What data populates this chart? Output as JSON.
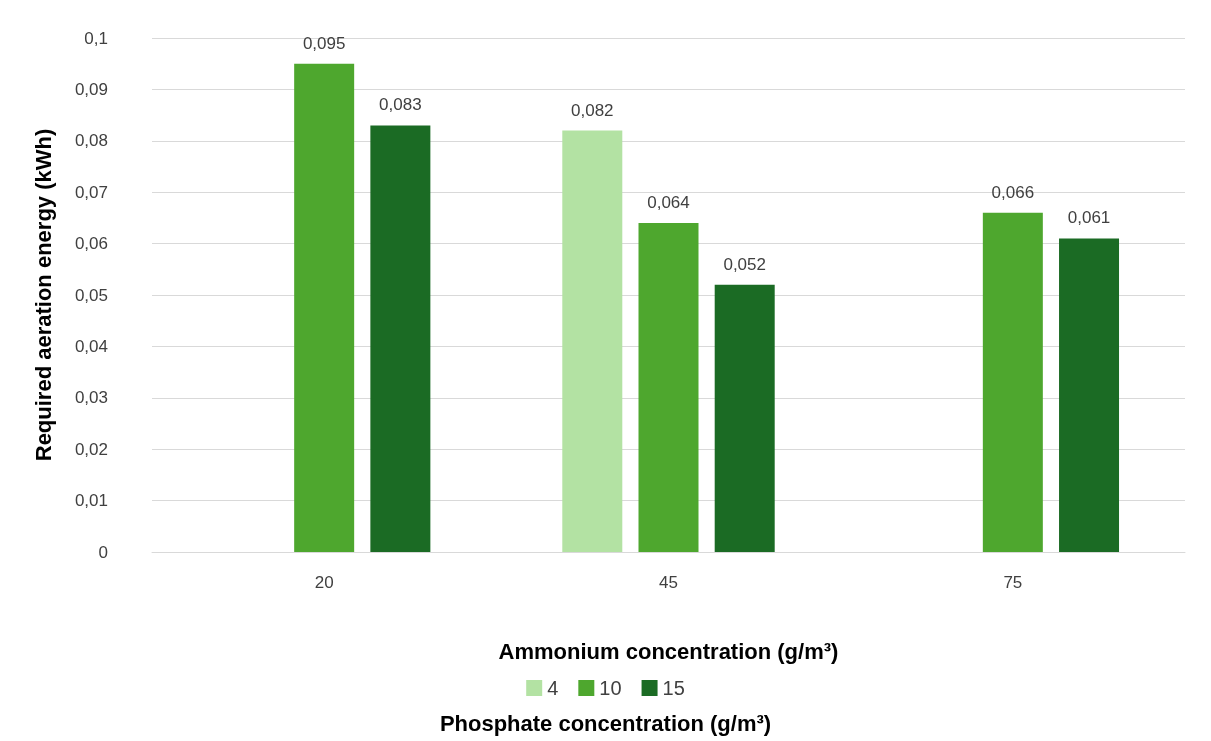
{
  "chart_data": {
    "type": "bar",
    "xlabel": "Ammonium concentration (g/m³)",
    "ylabel": "Required aeration energy (kWh)",
    "legend_title": "Phosphate concentration (g/m³)",
    "categories": [
      "20",
      "45",
      "75"
    ],
    "series": [
      {
        "name": "4",
        "color": "#b3e2a3",
        "values": [
          null,
          0.082,
          null
        ],
        "value_labels": [
          null,
          "0,082",
          null
        ]
      },
      {
        "name": "10",
        "color": "#4ea72e",
        "values": [
          0.095,
          0.064,
          0.066
        ],
        "value_labels": [
          "0,095",
          "0,064",
          "0,066"
        ]
      },
      {
        "name": "15",
        "color": "#1b6b24",
        "values": [
          0.083,
          0.052,
          0.061
        ],
        "value_labels": [
          "0,083",
          "0,052",
          "0,061"
        ]
      }
    ],
    "ylim": [
      0,
      0.1
    ],
    "yticks": [
      {
        "value": 0,
        "label": "0"
      },
      {
        "value": 0.01,
        "label": "0,01"
      },
      {
        "value": 0.02,
        "label": "0,02"
      },
      {
        "value": 0.03,
        "label": "0,03"
      },
      {
        "value": 0.04,
        "label": "0,04"
      },
      {
        "value": 0.05,
        "label": "0,05"
      },
      {
        "value": 0.06,
        "label": "0,06"
      },
      {
        "value": 0.07,
        "label": "0,07"
      },
      {
        "value": 0.08,
        "label": "0,08"
      },
      {
        "value": 0.09,
        "label": "0,09"
      },
      {
        "value": 0.1,
        "label": "0,1"
      }
    ],
    "grid": "y",
    "legend": "bottom"
  }
}
